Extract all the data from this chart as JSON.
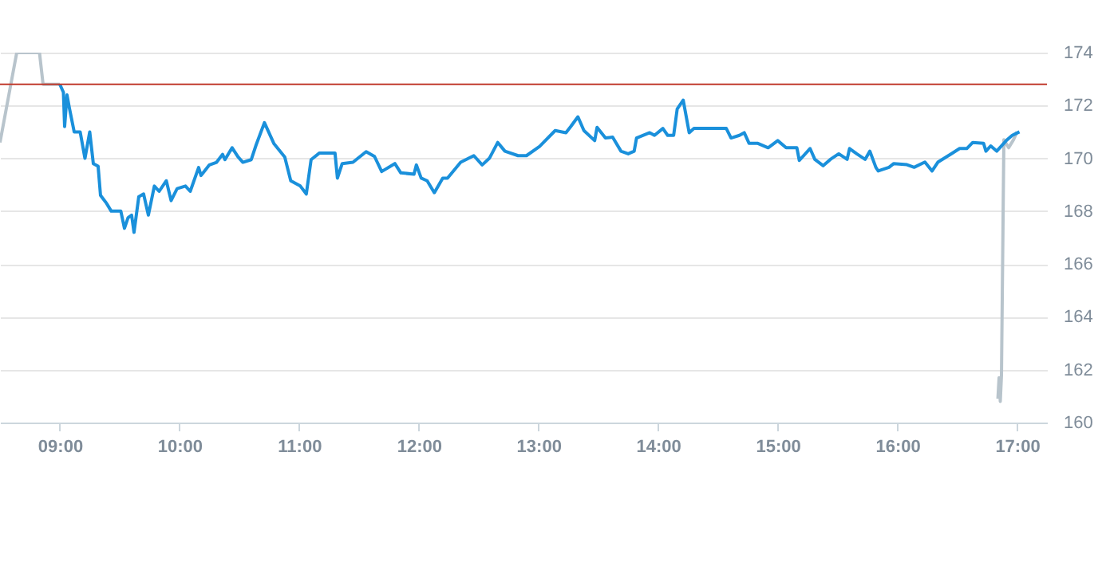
{
  "chart_data": {
    "type": "line",
    "xlim": [
      8.5,
      17.25
    ],
    "xticks": [
      {
        "value": 9,
        "label": "09:00"
      },
      {
        "value": 10,
        "label": "10:00"
      },
      {
        "value": 11,
        "label": "11:00"
      },
      {
        "value": 12,
        "label": "12:00"
      },
      {
        "value": 13,
        "label": "13:00"
      },
      {
        "value": 14,
        "label": "14:00"
      },
      {
        "value": 15,
        "label": "15:00"
      },
      {
        "value": 16,
        "label": "16:00"
      },
      {
        "value": 17,
        "label": "17:00"
      }
    ],
    "ylim": [
      160,
      174
    ],
    "yticks": [
      160,
      162,
      164,
      166,
      168,
      170,
      172,
      174
    ],
    "grid": "y",
    "ref_lines": [
      {
        "axis": "y",
        "value": 172.8,
        "color": "#c0392b"
      }
    ],
    "series": [
      {
        "color": "#b8c4cc",
        "x": [
          8.5,
          8.64,
          8.83,
          8.86,
          9.0
        ],
        "values": [
          170.6,
          174,
          174,
          172.8,
          172.8
        ]
      },
      {
        "color": "#b8c4cc",
        "x": [
          16.84,
          16.85,
          16.86,
          16.87,
          16.89,
          16.93,
          16.97,
          17.0
        ],
        "values": [
          160.9,
          161.7,
          160.8,
          161.8,
          170.7,
          170.4,
          170.7,
          171.0
        ]
      },
      {
        "color": "#1a90db",
        "x": [
          9.0,
          9.03,
          9.04,
          9.06,
          9.08,
          9.12,
          9.17,
          9.21,
          9.25,
          9.28,
          9.32,
          9.34,
          9.39,
          9.43,
          9.51,
          9.54,
          9.57,
          9.6,
          9.62,
          9.66,
          9.7,
          9.74,
          9.79,
          9.83,
          9.89,
          9.93,
          9.98,
          10.05,
          10.09,
          10.16,
          10.18,
          10.25,
          10.31,
          10.36,
          10.38,
          10.44,
          10.49,
          10.53,
          10.6,
          10.64,
          10.71,
          10.79,
          10.88,
          10.93,
          11.01,
          11.06,
          11.1,
          11.17,
          11.3,
          11.32,
          11.36,
          11.45,
          11.56,
          11.63,
          11.69,
          11.8,
          11.85,
          11.96,
          11.98,
          12.02,
          12.07,
          12.13,
          12.2,
          12.24,
          12.35,
          12.46,
          12.53,
          12.59,
          12.66,
          12.72,
          12.83,
          12.9,
          13.01,
          13.14,
          13.23,
          13.27,
          13.33,
          13.38,
          13.47,
          13.49,
          13.56,
          13.62,
          13.69,
          13.75,
          13.8,
          13.82,
          13.93,
          13.97,
          14.04,
          14.08,
          14.13,
          14.16,
          14.21,
          14.26,
          14.3,
          14.35,
          14.57,
          14.61,
          14.68,
          14.72,
          14.76,
          14.83,
          14.92,
          15.0,
          15.07,
          15.16,
          15.18,
          15.27,
          15.31,
          15.38,
          15.44,
          15.51,
          15.58,
          15.6,
          15.66,
          15.73,
          15.77,
          15.82,
          15.84,
          15.93,
          15.97,
          16.08,
          16.14,
          16.23,
          16.29,
          16.34,
          16.45,
          16.52,
          16.58,
          16.63,
          16.72,
          16.74,
          16.78,
          16.83,
          16.91,
          16.96,
          17.02
        ],
        "values": [
          172.8,
          172.5,
          171.2,
          172.4,
          171.9,
          171.0,
          171.0,
          170.0,
          171.0,
          169.8,
          169.7,
          168.6,
          168.3,
          168.0,
          168.0,
          167.35,
          167.75,
          167.85,
          167.2,
          168.55,
          168.65,
          167.85,
          168.95,
          168.75,
          169.15,
          168.4,
          168.85,
          168.95,
          168.75,
          169.65,
          169.35,
          169.75,
          169.85,
          170.15,
          169.95,
          170.4,
          170.05,
          169.85,
          169.95,
          170.5,
          171.35,
          170.55,
          170.05,
          169.15,
          168.95,
          168.65,
          169.95,
          170.2,
          170.2,
          169.25,
          169.8,
          169.85,
          170.25,
          170.07,
          169.5,
          169.8,
          169.45,
          169.4,
          169.75,
          169.25,
          169.15,
          168.7,
          169.25,
          169.25,
          169.85,
          170.1,
          169.75,
          170.0,
          170.6,
          170.27,
          170.1,
          170.1,
          170.45,
          171.05,
          170.97,
          171.2,
          171.57,
          171.05,
          170.67,
          171.17,
          170.77,
          170.8,
          170.27,
          170.17,
          170.27,
          170.77,
          170.97,
          170.87,
          171.13,
          170.87,
          170.87,
          171.87,
          172.2,
          170.97,
          171.13,
          171.13,
          171.13,
          170.77,
          170.87,
          170.97,
          170.57,
          170.57,
          170.4,
          170.67,
          170.4,
          170.4,
          169.92,
          170.37,
          169.96,
          169.72,
          169.96,
          170.17,
          169.96,
          170.37,
          170.17,
          169.96,
          170.27,
          169.66,
          169.52,
          169.66,
          169.8,
          169.76,
          169.66,
          169.86,
          169.52,
          169.86,
          170.17,
          170.37,
          170.37,
          170.6,
          170.57,
          170.27,
          170.47,
          170.27,
          170.67,
          170.87,
          171.0
        ]
      }
    ]
  }
}
